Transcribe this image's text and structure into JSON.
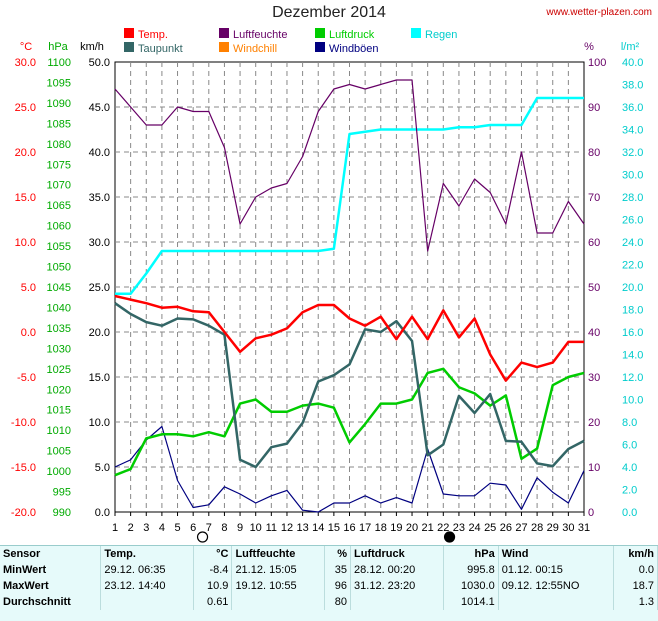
{
  "header": {
    "title": "Dezember 2014",
    "site": "www.wetter-plazen.com"
  },
  "axis_units": {
    "temp": "°C",
    "pressure": "hPa",
    "wind": "km/h",
    "humidity": "%",
    "rain": "l/m²"
  },
  "legend": [
    {
      "key": "temp",
      "label": "Temp.",
      "color": "#ff0000"
    },
    {
      "key": "dew",
      "label": "Taupunkt",
      "color": "#336666"
    },
    {
      "key": "hum",
      "label": "Luftfeuchte",
      "color": "#660066"
    },
    {
      "key": "chill",
      "label": "Windchill",
      "color": "#ff8000"
    },
    {
      "key": "press",
      "label": "Luftdruck",
      "color": "#00cc00"
    },
    {
      "key": "gust",
      "label": "Windböen",
      "color": "#000080"
    },
    {
      "key": "rain",
      "label": "Regen",
      "color": "#00ffff"
    }
  ],
  "chart_data": {
    "type": "line",
    "x": [
      1,
      2,
      3,
      4,
      5,
      6,
      7,
      8,
      9,
      10,
      11,
      12,
      13,
      14,
      15,
      16,
      17,
      18,
      19,
      20,
      21,
      22,
      23,
      24,
      25,
      26,
      27,
      28,
      29,
      30,
      31
    ],
    "axes": {
      "temp": {
        "min": -20,
        "max": 30,
        "step": 5,
        "color": "#ff0000"
      },
      "pressure": {
        "min": 990,
        "max": 1100,
        "step": 5,
        "color": "#00aa00"
      },
      "wind": {
        "min": 0,
        "max": 50,
        "step": 5,
        "color": "#000000"
      },
      "humidity": {
        "min": 0,
        "max": 100,
        "step": 10,
        "color": "#660066"
      },
      "rain": {
        "min": 0,
        "max": 40,
        "step": 2,
        "color": "#00cccc"
      }
    },
    "series": [
      {
        "name": "Temp.",
        "axis": "temp",
        "color": "#ff0000",
        "values": [
          4.0,
          3.6,
          3.2,
          2.7,
          2.8,
          2.3,
          2.2,
          0.0,
          -2.2,
          -0.7,
          -0.3,
          0.4,
          2.2,
          3.0,
          3.0,
          1.5,
          0.7,
          1.7,
          -0.8,
          1.7,
          -0.8,
          2.4,
          -0.6,
          1.5,
          -2.5,
          -5.4,
          -3.4,
          -3.9,
          -3.4,
          -1.1,
          -1.1
        ]
      },
      {
        "name": "Taupunkt",
        "axis": "temp",
        "color": "#336666",
        "values": [
          3.2,
          2.0,
          1.1,
          0.7,
          1.5,
          1.4,
          0.7,
          -0.3,
          -14.2,
          -15.0,
          -12.8,
          -12.4,
          -10.1,
          -5.5,
          -4.8,
          -3.6,
          0.3,
          0.0,
          1.2,
          -1.0,
          -13.7,
          -12.5,
          -7.1,
          -9.0,
          -6.9,
          -12.1,
          -12.2,
          -14.6,
          -14.9,
          -13.0,
          -12.1
        ]
      },
      {
        "name": "Luftfeuchte",
        "axis": "humidity",
        "color": "#660066",
        "values": [
          94,
          90,
          86,
          86,
          90,
          89,
          89,
          81,
          64,
          70,
          72,
          73,
          79,
          89,
          94,
          95,
          94,
          95,
          96,
          96,
          58,
          73,
          68,
          74,
          71,
          64,
          80,
          62,
          62,
          69,
          64
        ]
      },
      {
        "name": "Luftdruck",
        "axis": "pressure",
        "color": "#00cc00",
        "values": [
          999,
          1000.5,
          1008,
          1009,
          1009,
          1008.5,
          1009.5,
          1008.5,
          1016.5,
          1017.5,
          1014.5,
          1014.5,
          1016,
          1016.5,
          1015.5,
          1007,
          1011.5,
          1016.5,
          1016.5,
          1017.5,
          1024,
          1025,
          1020.5,
          1019,
          1016,
          1018.5,
          1003,
          1005.5,
          1021,
          1023,
          1024
        ]
      },
      {
        "name": "Windböen",
        "axis": "wind",
        "color": "#000080",
        "values": [
          5,
          5.8,
          8,
          9.5,
          3.5,
          0.5,
          0.8,
          2.8,
          2,
          1,
          1.8,
          2.4,
          0.2,
          0,
          1,
          1,
          1.8,
          1,
          1.6,
          1,
          7,
          2,
          1.8,
          1.8,
          3.2,
          3,
          0.3,
          3.8,
          2.2,
          1,
          4.6
        ]
      },
      {
        "name": "Regen",
        "axis": "rain",
        "color": "#00ffff",
        "values": [
          19.4,
          19.4,
          21.2,
          23.2,
          23.2,
          23.2,
          23.2,
          23.2,
          23.2,
          23.2,
          23.2,
          23.2,
          23.2,
          23.2,
          23.4,
          33.6,
          33.8,
          34.0,
          34.0,
          34.0,
          34.0,
          34.0,
          34.2,
          34.2,
          34.4,
          34.4,
          34.4,
          36.8,
          36.8,
          36.8,
          36.8
        ]
      }
    ],
    "moon_markers": [
      {
        "day": 6.6,
        "type": "full"
      },
      {
        "day": 22.4,
        "type": "new"
      }
    ]
  },
  "stats": {
    "headers": [
      "Sensor",
      "Temp.",
      "°C",
      "Luftfeuchte",
      "%",
      "Luftdruck",
      "hPa",
      "Wind",
      "km/h"
    ],
    "rows": [
      [
        "MinWert",
        "29.12.  06:35",
        "-8.4",
        "21.12.  15:05",
        "35",
        "28.12.  00:20",
        "995.8",
        "01.12.  00:15",
        "0.0"
      ],
      [
        "MaxWert",
        "23.12.  14:40",
        "10.9",
        "19.12.  10:55",
        "96",
        "31.12.  23:20",
        "1030.0",
        "09.12.  12:55NO",
        "18.7"
      ],
      [
        "Durchschnitt",
        "",
        "0.61",
        "",
        "80",
        "",
        "1014.1",
        "",
        "1.3"
      ]
    ]
  }
}
